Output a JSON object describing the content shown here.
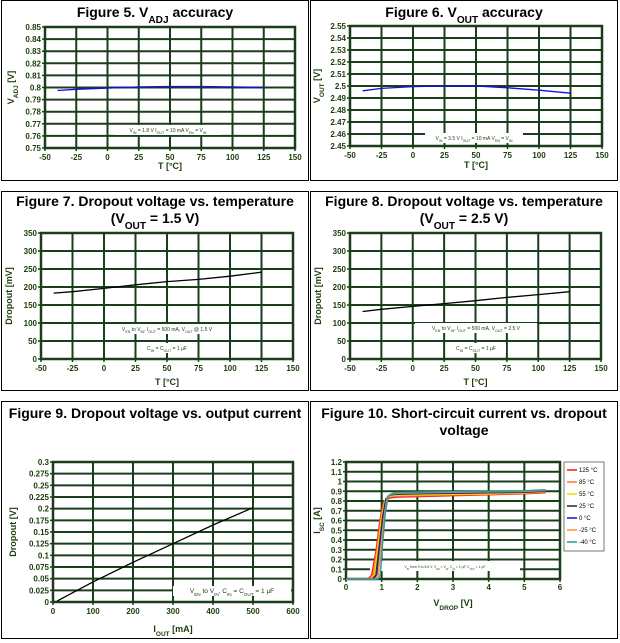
{
  "grid_color": "#1a3d1a",
  "chart_data": [
    {
      "type": "line",
      "title": [
        {
          "t": "Figure 5. V"
        },
        {
          "t": "ADJ",
          "sub": true
        },
        {
          "t": " accuracy"
        }
      ],
      "xlabel": [
        {
          "t": "T [°C]"
        }
      ],
      "ylabel": [
        {
          "t": "V"
        },
        {
          "t": "ADJ",
          "sub": true
        },
        {
          "t": " [V]"
        }
      ],
      "xlim": [
        -50,
        150
      ],
      "ylim": [
        0.75,
        0.85
      ],
      "grid": true,
      "xticks": [
        "-50",
        "-25",
        "0",
        "25",
        "50",
        "75",
        "100",
        "125",
        "150"
      ],
      "yticks": [
        "0.75",
        "0.76",
        "0.77",
        "0.78",
        "0.79",
        "0.8",
        "0.81",
        "0.82",
        "0.83",
        "0.84",
        "0.85"
      ],
      "annotations": [
        [
          {
            "t": "V"
          },
          {
            "t": "IN",
            "sub": true
          },
          {
            "t": " = 1.8 V I"
          },
          {
            "t": "OUT",
            "sub": true
          },
          {
            "t": " = 10 mA V"
          },
          {
            "t": "EN",
            "sub": true
          },
          {
            "t": " = V"
          },
          {
            "t": "IN",
            "sub": true
          }
        ]
      ],
      "series": [
        {
          "color": "#1010e0",
          "x": [
            -40,
            -25,
            0,
            25,
            50,
            75,
            100,
            125
          ],
          "y": [
            0.7975,
            0.7985,
            0.7995,
            0.8005,
            0.8008,
            0.8008,
            0.8005,
            0.8
          ]
        }
      ]
    },
    {
      "type": "line",
      "title": [
        {
          "t": "Figure 6. V"
        },
        {
          "t": "OUT",
          "sub": true
        },
        {
          "t": " accuracy"
        }
      ],
      "xlabel": [
        {
          "t": "T [°C]"
        }
      ],
      "ylabel": [
        {
          "t": "V"
        },
        {
          "t": "OUT",
          "sub": true
        },
        {
          "t": " [V]"
        }
      ],
      "xlim": [
        -50,
        150
      ],
      "ylim": [
        2.45,
        2.55
      ],
      "grid": true,
      "xticks": [
        "-50",
        "-25",
        "0",
        "25",
        "50",
        "75",
        "100",
        "125",
        "150"
      ],
      "yticks": [
        "2.45",
        "2.46",
        "2.47",
        "2.48",
        "2.49",
        "2.5",
        "2.51",
        "2.52",
        "2.53",
        "2.54",
        "2.55"
      ],
      "annotations": [
        [
          {
            "t": "V"
          },
          {
            "t": "IN",
            "sub": true
          },
          {
            "t": " = 3.5 V I"
          },
          {
            "t": "OUT",
            "sub": true
          },
          {
            "t": " = 10 mA V"
          },
          {
            "t": "EN",
            "sub": true
          },
          {
            "t": " = V"
          },
          {
            "t": "IN",
            "sub": true
          }
        ]
      ],
      "series": [
        {
          "color": "#1010e0",
          "x": [
            -40,
            -25,
            0,
            25,
            50,
            75,
            100,
            125
          ],
          "y": [
            2.496,
            2.498,
            2.4995,
            2.5,
            2.5,
            2.4985,
            2.4965,
            2.494
          ]
        }
      ]
    },
    {
      "type": "line",
      "title": [
        {
          "t": "Figure 7. Dropout voltage vs. temperature"
        },
        {
          "br": true
        },
        {
          "t": "(V"
        },
        {
          "t": "OUT",
          "sub": true
        },
        {
          "t": " = 1.5 V)"
        }
      ],
      "xlabel": [
        {
          "t": "T [°C]"
        }
      ],
      "ylabel": [
        {
          "t": "Dropout [mV]"
        }
      ],
      "xlim": [
        -50,
        150
      ],
      "ylim": [
        0,
        350
      ],
      "grid": true,
      "xticks": [
        "-50",
        "-25",
        "0",
        "25",
        "50",
        "75",
        "100",
        "125",
        "150"
      ],
      "yticks": [
        "0",
        "50",
        "100",
        "150",
        "200",
        "250",
        "300",
        "350"
      ],
      "annotations": [
        [
          {
            "t": "V"
          },
          {
            "t": "EN",
            "sub": true
          },
          {
            "t": "  to V"
          },
          {
            "t": "IN",
            "sub": true
          },
          {
            "t": ", I"
          },
          {
            "t": "OUT",
            "sub": true
          },
          {
            "t": " = 500 mA, V"
          },
          {
            "t": "OUT",
            "sub": true
          },
          {
            "t": " @ 1.5 V"
          }
        ],
        [
          {
            "t": "C"
          },
          {
            "t": "IN",
            "sub": true
          },
          {
            "t": " = C"
          },
          {
            "t": "OUT",
            "sub": true
          },
          {
            "t": " = 1 µF"
          }
        ]
      ],
      "series": [
        {
          "color": "#000000",
          "x": [
            -40,
            -25,
            0,
            25,
            50,
            75,
            100,
            125
          ],
          "y": [
            183,
            187,
            196,
            206,
            215,
            221,
            230,
            241
          ]
        }
      ]
    },
    {
      "type": "line",
      "title": [
        {
          "t": "Figure 8. Dropout voltage vs. temperature"
        },
        {
          "br": true
        },
        {
          "t": "(V"
        },
        {
          "t": "OUT",
          "sub": true
        },
        {
          "t": " = 2.5 V)"
        }
      ],
      "xlabel": [
        {
          "t": "T [°C]"
        }
      ],
      "ylabel": [
        {
          "t": "Dropout [mV]"
        }
      ],
      "xlim": [
        -50,
        150
      ],
      "ylim": [
        0,
        350
      ],
      "grid": true,
      "xticks": [
        "-50",
        "-25",
        "0",
        "25",
        "50",
        "75",
        "100",
        "125",
        "150"
      ],
      "yticks": [
        "0",
        "50",
        "100",
        "150",
        "200",
        "250",
        "300",
        "350"
      ],
      "annotations": [
        [
          {
            "t": "V"
          },
          {
            "t": "EN",
            "sub": true
          },
          {
            "t": "  to V"
          },
          {
            "t": "IN",
            "sub": true
          },
          {
            "t": ", I"
          },
          {
            "t": "OUT",
            "sub": true
          },
          {
            "t": " = 500 mA, V"
          },
          {
            "t": "OUT",
            "sub": true
          },
          {
            "t": " = 2.5 V"
          }
        ],
        [
          {
            "t": "C"
          },
          {
            "t": "IN",
            "sub": true
          },
          {
            "t": " = C"
          },
          {
            "t": "OUT",
            "sub": true
          },
          {
            "t": " = 1 µF"
          }
        ]
      ],
      "series": [
        {
          "color": "#000000",
          "x": [
            -40,
            -25,
            0,
            25,
            50,
            75,
            100,
            125
          ],
          "y": [
            132,
            138,
            146,
            154,
            162,
            171,
            179,
            187
          ]
        }
      ]
    },
    {
      "type": "line",
      "title": [
        {
          "t": "Figure 9. Dropout voltage vs. output current"
        }
      ],
      "xlabel": [
        {
          "t": "I"
        },
        {
          "t": "OUT",
          "sub": true
        },
        {
          "t": " [mA]"
        }
      ],
      "ylabel": [
        {
          "t": "Dropout [V]"
        }
      ],
      "xlim": [
        0,
        600
      ],
      "ylim": [
        0,
        0.3
      ],
      "grid": true,
      "xticks": [
        "0",
        "100",
        "200",
        "300",
        "400",
        "500",
        "600"
      ],
      "yticks": [
        "0",
        "0.025",
        "0.05",
        "0.075",
        "0.1",
        "0.125",
        "0.15",
        "0.175",
        "0.2",
        "0.225",
        "0.25",
        "0.275",
        "0.3"
      ],
      "annotations": [
        [
          {
            "t": "V"
          },
          {
            "t": "EN",
            "sub": true
          },
          {
            "t": " to V"
          },
          {
            "t": "IN",
            "sub": true
          },
          {
            "t": ", C"
          },
          {
            "t": "IN",
            "sub": true
          },
          {
            "t": " = C"
          },
          {
            "t": "OUT",
            "sub": true
          },
          {
            "t": " = 1 µF"
          }
        ]
      ],
      "series": [
        {
          "color": "#000000",
          "x": [
            10,
            100,
            200,
            300,
            400,
            500
          ],
          "y": [
            0.002,
            0.043,
            0.085,
            0.125,
            0.165,
            0.202
          ]
        }
      ]
    },
    {
      "type": "line",
      "title": [
        {
          "t": "Figure 10. Short-circuit current vs. dropout"
        },
        {
          "br": true
        },
        {
          "t": "voltage"
        }
      ],
      "xlabel": [
        {
          "t": "V"
        },
        {
          "t": "DROP",
          "sub": true
        },
        {
          "t": " [V]"
        }
      ],
      "ylabel": [
        {
          "t": "I"
        },
        {
          "t": "SC",
          "sub": true
        },
        {
          "t": " [A]"
        }
      ],
      "xlim": [
        0,
        6
      ],
      "ylim": [
        0,
        1.2
      ],
      "grid": true,
      "legend": "right",
      "xticks": [
        "0",
        "1",
        "2",
        "3",
        "4",
        "5",
        "6"
      ],
      "yticks": [
        "0",
        "0.1",
        "0.2",
        "0.3",
        "0.4",
        "0.5",
        "0.6",
        "0.7",
        "0.8",
        "0.9",
        "1",
        "1.1",
        "1.2"
      ],
      "annotations": [
        [
          {
            "t": "V"
          },
          {
            "t": "IN",
            "sub": true
          },
          {
            "t": " from 0 to 5.5 V, V"
          },
          {
            "t": "EN",
            "sub": true
          },
          {
            "t": " = V"
          },
          {
            "t": "IN",
            "sub": true
          },
          {
            "t": ", C"
          },
          {
            "t": "IN",
            "sub": true
          },
          {
            "t": " = 1 µF, C"
          },
          {
            "t": "OUT",
            "sub": true
          },
          {
            "t": " = 1 µF"
          }
        ]
      ],
      "series": [
        {
          "name": "125 °C",
          "color": "#ff2020",
          "x": [
            0,
            0.62,
            0.72,
            0.85,
            0.95,
            1.05,
            1.2,
            1.4,
            2,
            3,
            4,
            5,
            5.6
          ],
          "y": [
            0,
            0,
            0.04,
            0.3,
            0.6,
            0.78,
            0.83,
            0.84,
            0.845,
            0.855,
            0.865,
            0.875,
            0.885
          ]
        },
        {
          "name": "85 °C",
          "color": "#ff7a40",
          "x": [
            0,
            0.66,
            0.76,
            0.88,
            0.98,
            1.08,
            1.2,
            1.4,
            2,
            3,
            4,
            5,
            5.6
          ],
          "y": [
            0,
            0,
            0.04,
            0.32,
            0.62,
            0.8,
            0.845,
            0.85,
            0.855,
            0.865,
            0.87,
            0.88,
            0.89
          ]
        },
        {
          "name": "55 °C",
          "color": "#f0e000",
          "x": [
            0,
            0.7,
            0.8,
            0.9,
            1.0,
            1.1,
            1.2,
            1.4,
            2,
            3,
            4,
            5,
            5.6
          ],
          "y": [
            0,
            0,
            0.04,
            0.33,
            0.63,
            0.81,
            0.85,
            0.86,
            0.865,
            0.87,
            0.875,
            0.885,
            0.895
          ]
        },
        {
          "name": "25 °C",
          "color": "#333333",
          "x": [
            0,
            0.74,
            0.84,
            0.93,
            1.03,
            1.12,
            1.22,
            1.4,
            2,
            3,
            4,
            5,
            5.6
          ],
          "y": [
            0,
            0,
            0.04,
            0.33,
            0.64,
            0.82,
            0.86,
            0.87,
            0.875,
            0.88,
            0.885,
            0.89,
            0.9
          ]
        },
        {
          "name": "0 °C",
          "color": "#1a1ae0",
          "x": [
            0,
            0.78,
            0.88,
            0.96,
            1.06,
            1.14,
            1.24,
            1.4,
            2,
            3,
            4,
            5,
            5.6
          ],
          "y": [
            0,
            0,
            0.04,
            0.33,
            0.65,
            0.83,
            0.865,
            0.875,
            0.88,
            0.885,
            0.89,
            0.895,
            0.905
          ]
        },
        {
          "name": "-25 °C",
          "color": "#ff9933",
          "x": [
            0,
            0.82,
            0.9,
            0.98,
            1.08,
            1.16,
            1.26,
            1.4,
            2,
            3,
            4,
            5,
            5.6
          ],
          "y": [
            0,
            0,
            0.04,
            0.34,
            0.66,
            0.84,
            0.87,
            0.88,
            0.885,
            0.89,
            0.895,
            0.9,
            0.91
          ]
        },
        {
          "name": "-40 °C",
          "color": "#3a9a96",
          "x": [
            0,
            0.9,
            0.96,
            1.02,
            1.1,
            1.18,
            1.28,
            1.4,
            2,
            3,
            4,
            5,
            5.6
          ],
          "y": [
            0,
            0,
            0.04,
            0.35,
            0.67,
            0.85,
            0.875,
            0.885,
            0.89,
            0.895,
            0.9,
            0.905,
            0.915
          ]
        }
      ]
    }
  ]
}
